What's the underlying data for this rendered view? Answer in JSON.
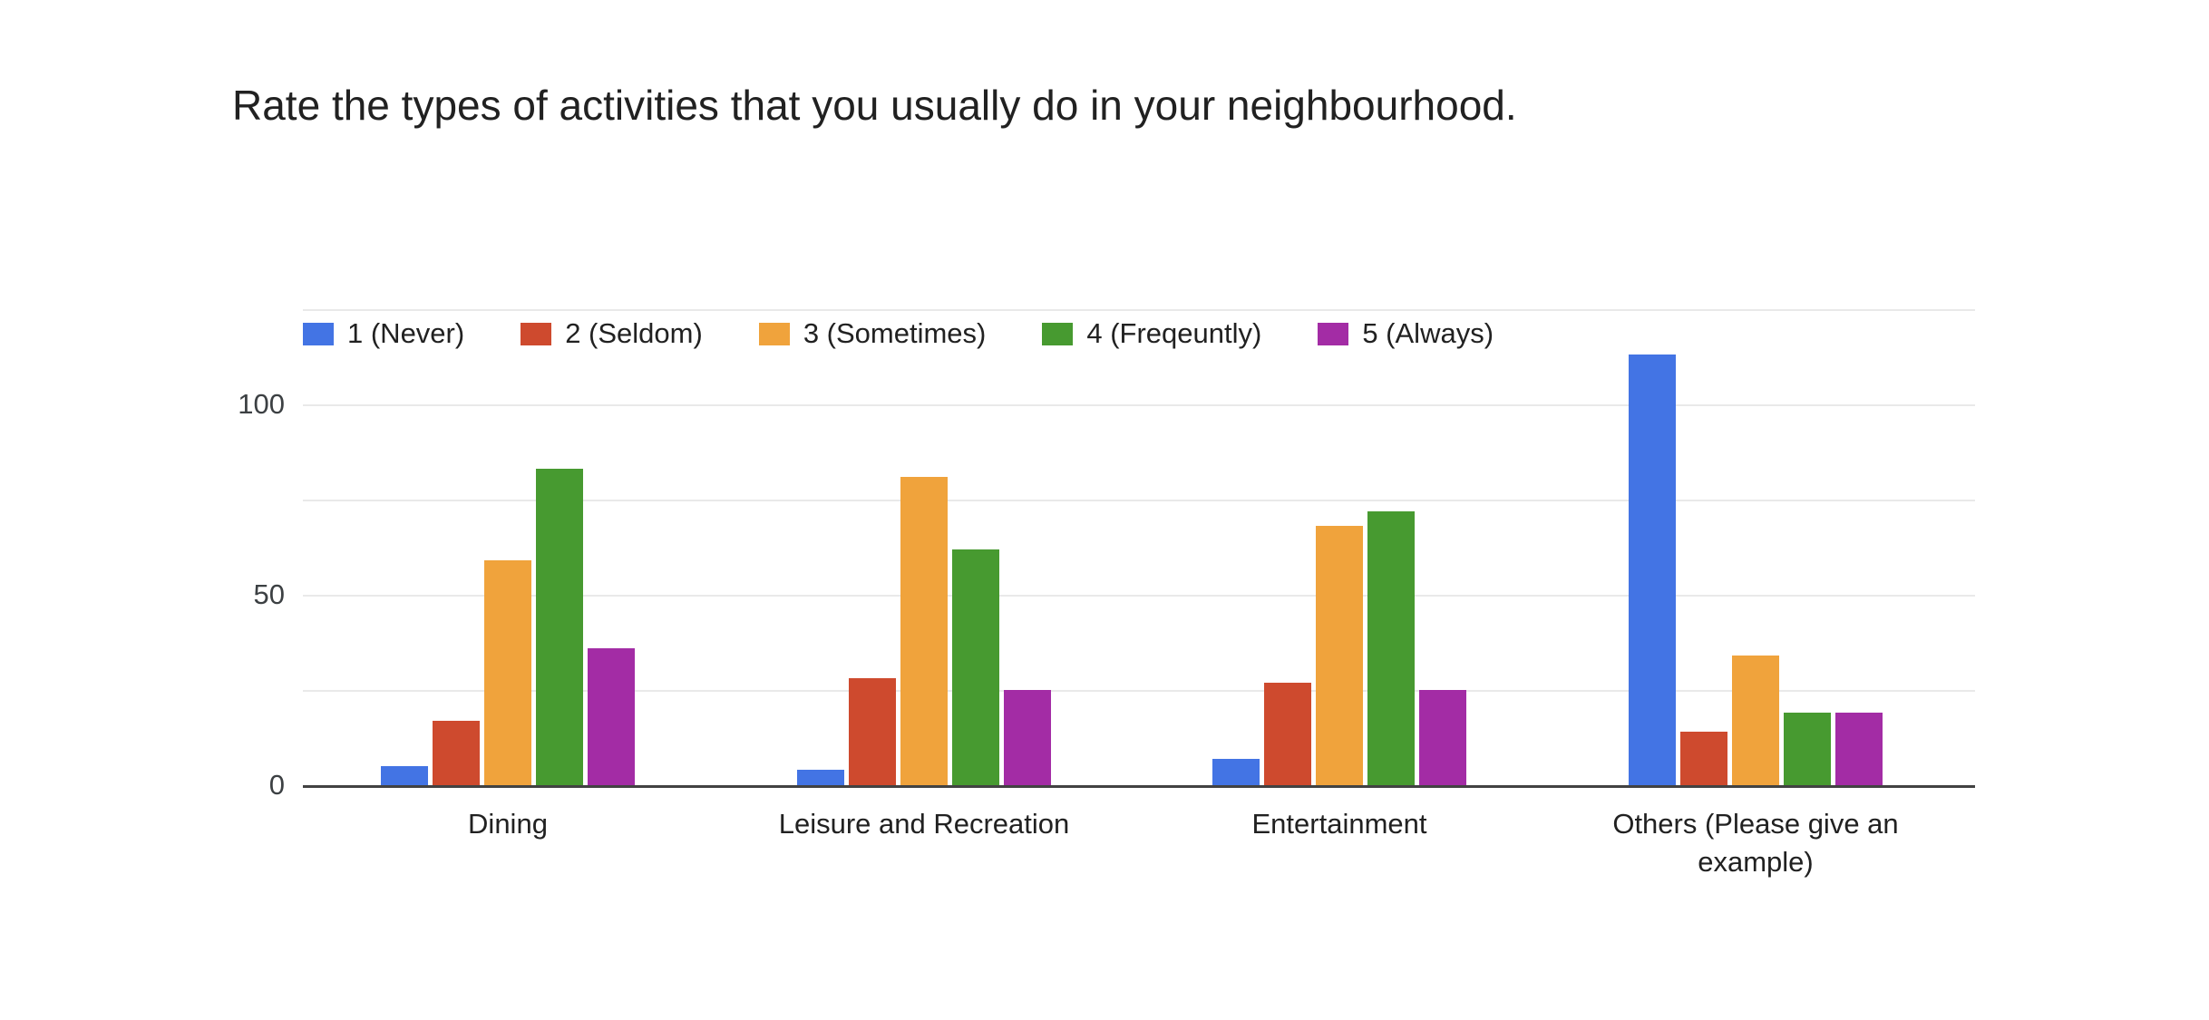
{
  "chart": {
    "title": "Rate the types of activities that you usually do in your neighbourhood."
  },
  "chart_data": {
    "type": "bar",
    "title": "Rate the types of activities that you usually do in your neighbourhood.",
    "categories": [
      "Dining",
      "Leisure and Recreation",
      "Entertainment",
      "Others (Please give an example)"
    ],
    "series": [
      {
        "name": "1 (Never)",
        "color": "#4374E4",
        "values": [
          5,
          4,
          7,
          113
        ]
      },
      {
        "name": "2 (Seldom)",
        "color": "#CE4A2E",
        "values": [
          17,
          28,
          27,
          14
        ]
      },
      {
        "name": "3 (Sometimes)",
        "color": "#F0A33C",
        "values": [
          59,
          81,
          68,
          34
        ]
      },
      {
        "name": "4 (Freqeuntly)",
        "color": "#479A30",
        "values": [
          83,
          62,
          72,
          19
        ]
      },
      {
        "name": "5 (Always)",
        "color": "#A32CA5",
        "values": [
          36,
          25,
          25,
          19
        ]
      }
    ],
    "xlabel": "",
    "ylabel": "",
    "ylim": [
      0,
      125
    ],
    "gridlines": [
      0,
      25,
      50,
      75,
      100,
      125
    ],
    "y_ticks_labeled": [
      0,
      50,
      100
    ],
    "grid": true,
    "legend_position": "top",
    "colors": {
      "grid": "#e9e9e9",
      "axis": "#424242",
      "text": "#212121"
    }
  }
}
